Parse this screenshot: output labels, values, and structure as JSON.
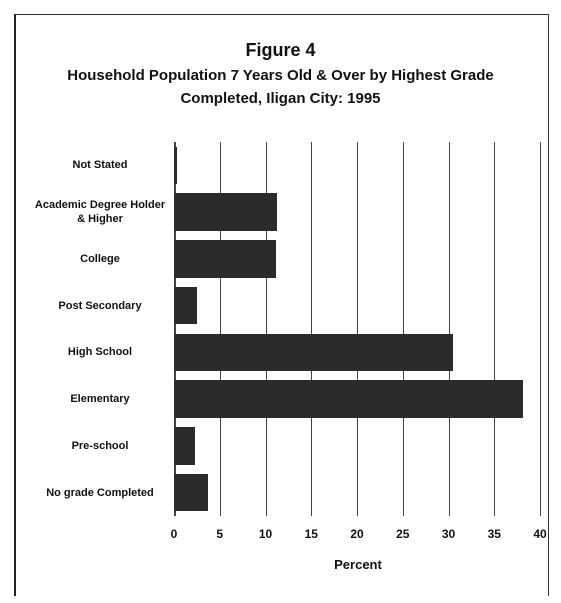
{
  "chart_data": {
    "type": "barh",
    "title": "Figure 4",
    "subtitle": "Household Population 7 Years Old & Over by Highest Grade Completed, Iligan City:  1995",
    "x_label": "Percent",
    "categories": [
      "Not Stated",
      "Academic Degree Holder & Higher",
      "College",
      "Post Secondary",
      "High School",
      "Elementary",
      "Pre-school",
      "No grade Completed"
    ],
    "values": [
      0.3,
      11.3,
      11.1,
      2.5,
      30.5,
      38.1,
      2.3,
      3.7
    ],
    "color": "#2b2b2b",
    "xlim": [
      0,
      40
    ],
    "xticks": [
      0,
      5,
      10,
      15,
      20,
      25,
      30,
      35,
      40
    ],
    "grid": true
  }
}
